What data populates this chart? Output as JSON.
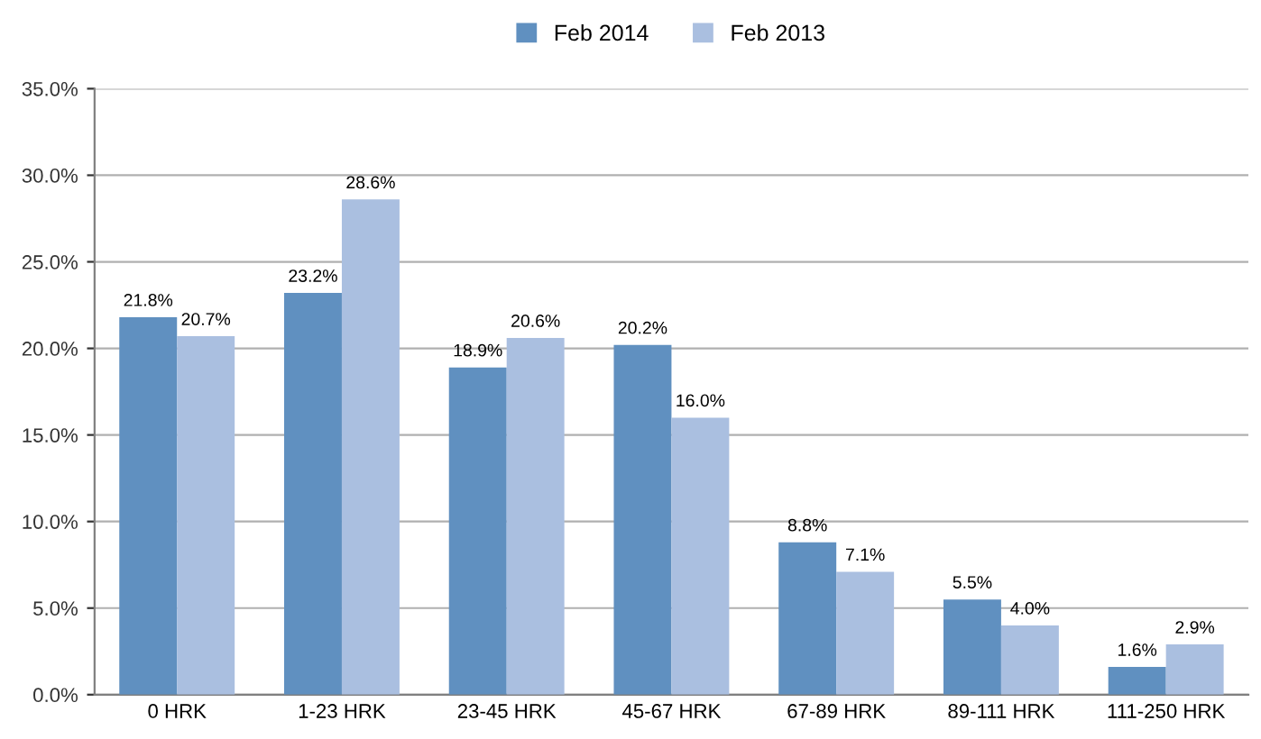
{
  "chart_data": {
    "type": "bar",
    "categories": [
      "0 HRK",
      "1-23 HRK",
      "23-45 HRK",
      "45-67 HRK",
      "67-89 HRK",
      "89-111 HRK",
      "111-250 HRK"
    ],
    "series": [
      {
        "name": "Feb 2014",
        "color": "#6090c0",
        "values": [
          21.8,
          23.2,
          18.9,
          20.2,
          8.8,
          5.5,
          1.6
        ],
        "value_labels": [
          "21.8%",
          "23.2%",
          "18.9%",
          "20.2%",
          "8.8%",
          "5.5%",
          "1.6%"
        ]
      },
      {
        "name": "Feb 2013",
        "color": "#aabfe0",
        "values": [
          20.7,
          28.6,
          20.6,
          16.0,
          7.1,
          4.0,
          2.9
        ],
        "value_labels": [
          "20.7%",
          "28.6%",
          "20.6%",
          "16.0%",
          "7.1%",
          "4.0%",
          "2.9%"
        ]
      }
    ],
    "ylim": [
      0,
      35
    ],
    "yticks": [
      {
        "value": 0,
        "label": "0.0%"
      },
      {
        "value": 5,
        "label": "5.0%"
      },
      {
        "value": 10,
        "label": "10.0%"
      },
      {
        "value": 15,
        "label": "15.0%"
      },
      {
        "value": 20,
        "label": "20.0%"
      },
      {
        "value": 25,
        "label": "25.0%"
      },
      {
        "value": 30,
        "label": "30.0%"
      },
      {
        "value": 35,
        "label": "35.0%"
      }
    ],
    "grid": "y",
    "legend": "top"
  }
}
